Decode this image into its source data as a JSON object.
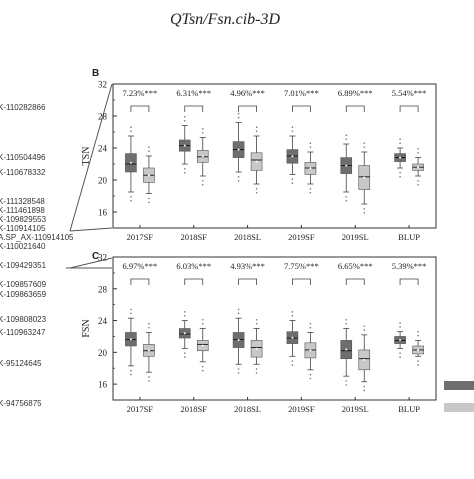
{
  "title": "QTsn/Fsn.cib-3D",
  "colors": {
    "dark": "#6e6e6e",
    "light": "#c8c8c8",
    "axis": "#333333"
  },
  "markers": [
    "K-110282866",
    "K-110504496",
    "K-110678332",
    "K-111328548",
    "K-111461898",
    "K-109829553",
    "K-110914105",
    "A.SP_AX-110914105",
    "K-110021640",
    "K-109429351",
    "K-109857609",
    "K-109863659",
    "K-109808023",
    "K-110963247",
    "K-95124645",
    "K-94756875"
  ],
  "chart_data": [
    {
      "panel": "B",
      "type": "box",
      "ylabel": "TSN",
      "ylim": [
        14,
        32
      ],
      "yticks": [
        16,
        20,
        24,
        28,
        32
      ],
      "categories": [
        "2017SF",
        "2018SF",
        "2018SL",
        "2019SF",
        "2019SL",
        "BLUP"
      ],
      "annotations": [
        "7.23%***",
        "6.31%***",
        "4.96%***",
        "7.01%***",
        "6.89%***",
        "5.54%***"
      ],
      "series": [
        {
          "values": [
            {
              "min": 18.5,
              "q1": 21.0,
              "median": 22.0,
              "q3": 23.3,
              "max": 25.5
            },
            {
              "min": 22.0,
              "q1": 23.6,
              "median": 24.3,
              "q3": 25.0,
              "max": 26.8
            },
            {
              "min": 21.0,
              "q1": 22.8,
              "median": 23.8,
              "q3": 24.8,
              "max": 27.2
            },
            {
              "min": 20.7,
              "q1": 22.1,
              "median": 23.0,
              "q3": 23.8,
              "max": 25.5
            },
            {
              "min": 18.5,
              "q1": 20.8,
              "median": 21.8,
              "q3": 22.8,
              "max": 24.5
            },
            {
              "min": 21.5,
              "q1": 22.3,
              "median": 22.8,
              "q3": 23.3,
              "max": 24.0
            }
          ]
        },
        {
          "values": [
            {
              "min": 18.3,
              "q1": 19.7,
              "median": 20.6,
              "q3": 21.5,
              "max": 23.0
            },
            {
              "min": 20.5,
              "q1": 22.2,
              "median": 22.9,
              "q3": 23.7,
              "max": 25.3
            },
            {
              "min": 19.5,
              "q1": 21.2,
              "median": 22.5,
              "q3": 23.4,
              "max": 25.5
            },
            {
              "min": 19.5,
              "q1": 20.7,
              "median": 21.5,
              "q3": 22.2,
              "max": 23.5
            },
            {
              "min": 17.0,
              "q1": 18.8,
              "median": 20.4,
              "q3": 21.8,
              "max": 23.5
            },
            {
              "min": 20.5,
              "q1": 21.2,
              "median": 21.6,
              "q3": 22.0,
              "max": 22.8
            }
          ]
        }
      ]
    },
    {
      "panel": "C",
      "type": "box",
      "ylabel": "FSN",
      "ylim": [
        14,
        32
      ],
      "yticks": [
        16,
        20,
        24,
        28,
        32
      ],
      "categories": [
        "2017SF",
        "2018SF",
        "2018SL",
        "2019SF",
        "2019SL",
        "BLUP"
      ],
      "annotations": [
        "6.97%***",
        "6.03%***",
        "4.93%***",
        "7.75%***",
        "6.65%***",
        "5.39%***"
      ],
      "series": [
        {
          "values": [
            {
              "min": 18.3,
              "q1": 20.8,
              "median": 21.6,
              "q3": 22.5,
              "max": 24.3
            },
            {
              "min": 20.5,
              "q1": 21.8,
              "median": 22.3,
              "q3": 23.0,
              "max": 24.0
            },
            {
              "min": 18.5,
              "q1": 20.6,
              "median": 21.6,
              "q3": 22.5,
              "max": 24.3
            },
            {
              "min": 19.5,
              "q1": 21.1,
              "median": 21.8,
              "q3": 22.6,
              "max": 24.0
            },
            {
              "min": 17.0,
              "q1": 19.2,
              "median": 20.2,
              "q3": 21.5,
              "max": 23.0
            },
            {
              "min": 20.5,
              "q1": 21.1,
              "median": 21.5,
              "q3": 22.0,
              "max": 22.6
            }
          ]
        },
        {
          "values": [
            {
              "min": 17.5,
              "q1": 19.5,
              "median": 20.2,
              "q3": 21.0,
              "max": 22.5
            },
            {
              "min": 18.8,
              "q1": 20.2,
              "median": 21.0,
              "q3": 21.5,
              "max": 23.0
            },
            {
              "min": 18.5,
              "q1": 19.4,
              "median": 20.6,
              "q3": 21.5,
              "max": 23.0
            },
            {
              "min": 17.8,
              "q1": 19.3,
              "median": 20.3,
              "q3": 21.2,
              "max": 22.5
            },
            {
              "min": 16.3,
              "q1": 17.8,
              "median": 19.2,
              "q3": 20.3,
              "max": 22.2
            },
            {
              "min": 19.5,
              "q1": 19.8,
              "median": 20.3,
              "q3": 20.8,
              "max": 21.5
            }
          ]
        }
      ]
    }
  ]
}
